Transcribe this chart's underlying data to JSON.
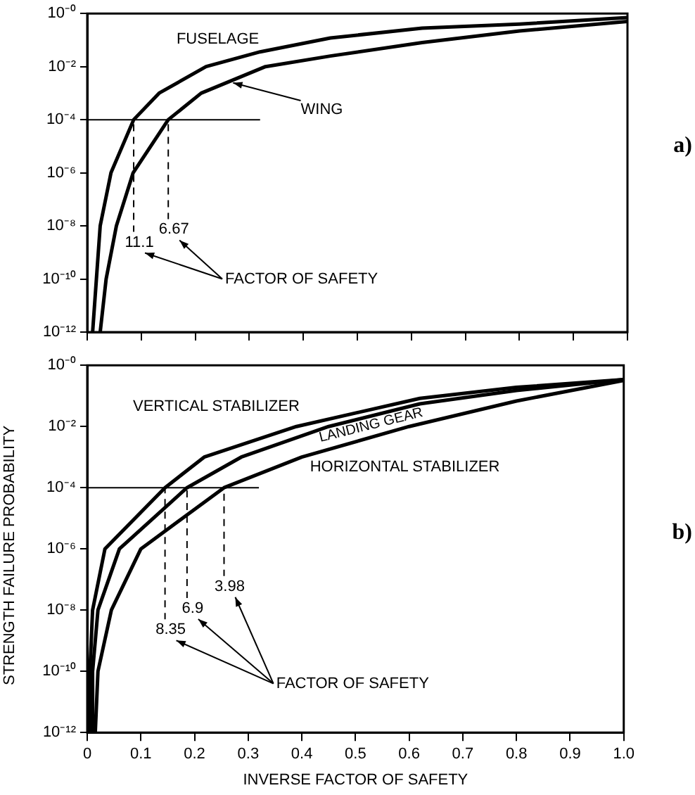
{
  "chart_data": [
    {
      "type": "line",
      "log": "y",
      "grid": false,
      "legend": false,
      "marker": "none",
      "tick_labels": "y",
      "xlim": [
        0,
        1
      ],
      "xticks": [
        0,
        0.1,
        0.2,
        0.3,
        0.4,
        0.5,
        0.6,
        0.7,
        0.8,
        0.9,
        1
      ],
      "ylim": [
        1e-12,
        1
      ],
      "yticks": [
        {
          "value": 1e-12,
          "label": "10⁻¹²"
        },
        {
          "value": 1e-10,
          "label": "10⁻¹⁰"
        },
        {
          "value": 1e-08,
          "label": "10⁻⁸"
        },
        {
          "value": 1e-06,
          "label": "10⁻⁶"
        },
        {
          "value": 0.0001,
          "label": "10⁻⁴"
        },
        {
          "value": 0.01,
          "label": "10⁻²"
        },
        {
          "value": 1,
          "label": "10⁻⁰"
        }
      ],
      "series": [
        {
          "name": "FUSELAGE",
          "type": "line",
          "color": "#000000",
          "line_style": "solid",
          "x": [
            0.01,
            0.017,
            0.024,
            0.044,
            0.086,
            0.133,
            0.22,
            0.32,
            0.45,
            0.62,
            0.8,
            1.0
          ],
          "values": [
            1e-12,
            1e-10,
            1e-08,
            1e-06,
            0.0001,
            0.001,
            0.01,
            0.036,
            0.12,
            0.28,
            0.4,
            0.7
          ]
        },
        {
          "name": "WING",
          "type": "line",
          "color": "#000000",
          "line_style": "solid",
          "x": [
            0.024,
            0.035,
            0.054,
            0.085,
            0.15,
            0.211,
            0.33,
            0.45,
            0.62,
            0.8,
            1.0
          ],
          "values": [
            1e-12,
            1e-10,
            1e-08,
            1e-06,
            0.0001,
            0.001,
            0.01,
            0.025,
            0.08,
            0.22,
            0.5
          ]
        },
        {
          "type": "line",
          "color": "#000000",
          "line_style": "solid",
          "x": [
            0,
            0.32
          ],
          "values": [
            0.0001,
            0.0001
          ]
        },
        {
          "type": "line",
          "color": "#000000",
          "line_style": "dashed",
          "x": [
            0.086,
            0.086
          ],
          "values": [
            0.0001,
            6e-09
          ]
        },
        {
          "type": "line",
          "color": "#000000",
          "line_style": "dashed",
          "x": [
            0.15,
            0.15
          ],
          "values": [
            0.0001,
            1.8e-08
          ]
        }
      ],
      "annotations": [
        {
          "text": "11.1",
          "x": 0.086,
          "y": 6e-09
        },
        {
          "text": "6.67",
          "x": 0.15,
          "y": 1.8e-08
        },
        "FACTOR OF SAFETY",
        "a)"
      ]
    },
    {
      "type": "line",
      "xlabel": "INVERSE FACTOR OF SAFETY",
      "ylabel": "STRENGTH FAILURE PROBABILITY",
      "log": "y",
      "grid": false,
      "legend": false,
      "marker": "none",
      "xlim": [
        0,
        1
      ],
      "xticks": [
        0,
        0.1,
        0.2,
        0.3,
        0.4,
        0.5,
        0.6,
        0.7,
        0.8,
        0.9,
        {
          "value": 1,
          "label": "1.0"
        }
      ],
      "ylim": [
        1e-12,
        1
      ],
      "yticks": [
        {
          "value": 1e-12,
          "label": "10⁻¹²"
        },
        {
          "value": 1e-10,
          "label": "10⁻¹⁰"
        },
        {
          "value": 1e-08,
          "label": "10⁻⁸"
        },
        {
          "value": 1e-06,
          "label": "10⁻⁶"
        },
        {
          "value": 0.0001,
          "label": "10⁻⁴"
        },
        {
          "value": 0.01,
          "label": "10⁻²"
        },
        {
          "value": 1,
          "label": "10⁻⁰"
        }
      ],
      "series": [
        {
          "name": "VERTICAL STABILIZER",
          "type": "line",
          "color": "#000000",
          "line_style": "solid",
          "x": [
            0.004,
            0.005,
            0.01,
            0.033,
            0.145,
            0.218,
            0.39,
            0.62,
            0.8,
            1.0
          ],
          "values": [
            1e-12,
            1e-10,
            1e-08,
            1e-06,
            0.0001,
            0.001,
            0.01,
            0.083,
            0.19,
            0.34
          ]
        },
        {
          "name": "LANDING GEAR",
          "type": "line",
          "color": "#000000",
          "line_style": "solid",
          "x": [
            0.008,
            0.01,
            0.02,
            0.06,
            0.186,
            0.287,
            0.45,
            0.62,
            0.8,
            1.0
          ],
          "values": [
            1e-12,
            1e-10,
            1e-08,
            1e-06,
            0.0001,
            0.001,
            0.01,
            0.055,
            0.15,
            0.34
          ]
        },
        {
          "name": "HORIZONTAL STABILIZER",
          "type": "line",
          "color": "#000000",
          "line_style": "solid",
          "x": [
            0.015,
            0.02,
            0.045,
            0.1,
            0.255,
            0.4,
            0.6,
            0.8,
            1.0
          ],
          "values": [
            1e-12,
            1e-10,
            1e-08,
            1e-06,
            0.0001,
            0.001,
            0.01,
            0.068,
            0.32
          ]
        },
        {
          "type": "line",
          "color": "#000000",
          "line_style": "solid",
          "x": [
            0,
            0.32
          ],
          "values": [
            0.0001,
            0.0001
          ]
        },
        {
          "type": "line",
          "color": "#000000",
          "line_style": "dashed",
          "x": [
            0.145,
            0.145
          ],
          "values": [
            0.0001,
            5e-09
          ]
        },
        {
          "type": "line",
          "color": "#000000",
          "line_style": "dashed",
          "x": [
            0.186,
            0.186
          ],
          "values": [
            0.0001,
            2.5e-08
          ]
        },
        {
          "type": "line",
          "color": "#000000",
          "line_style": "dashed",
          "x": [
            0.255,
            0.255
          ],
          "values": [
            0.0001,
            1.3e-07
          ]
        }
      ],
      "annotations": [
        {
          "text": "8.35",
          "x": 0.145,
          "y": 5e-09
        },
        {
          "text": "6.9",
          "x": 0.186,
          "y": 2.5e-08
        },
        {
          "text": "3.98",
          "x": 0.255,
          "y": 1.3e-07
        },
        "FACTOR OF SAFETY",
        "b)"
      ]
    }
  ]
}
